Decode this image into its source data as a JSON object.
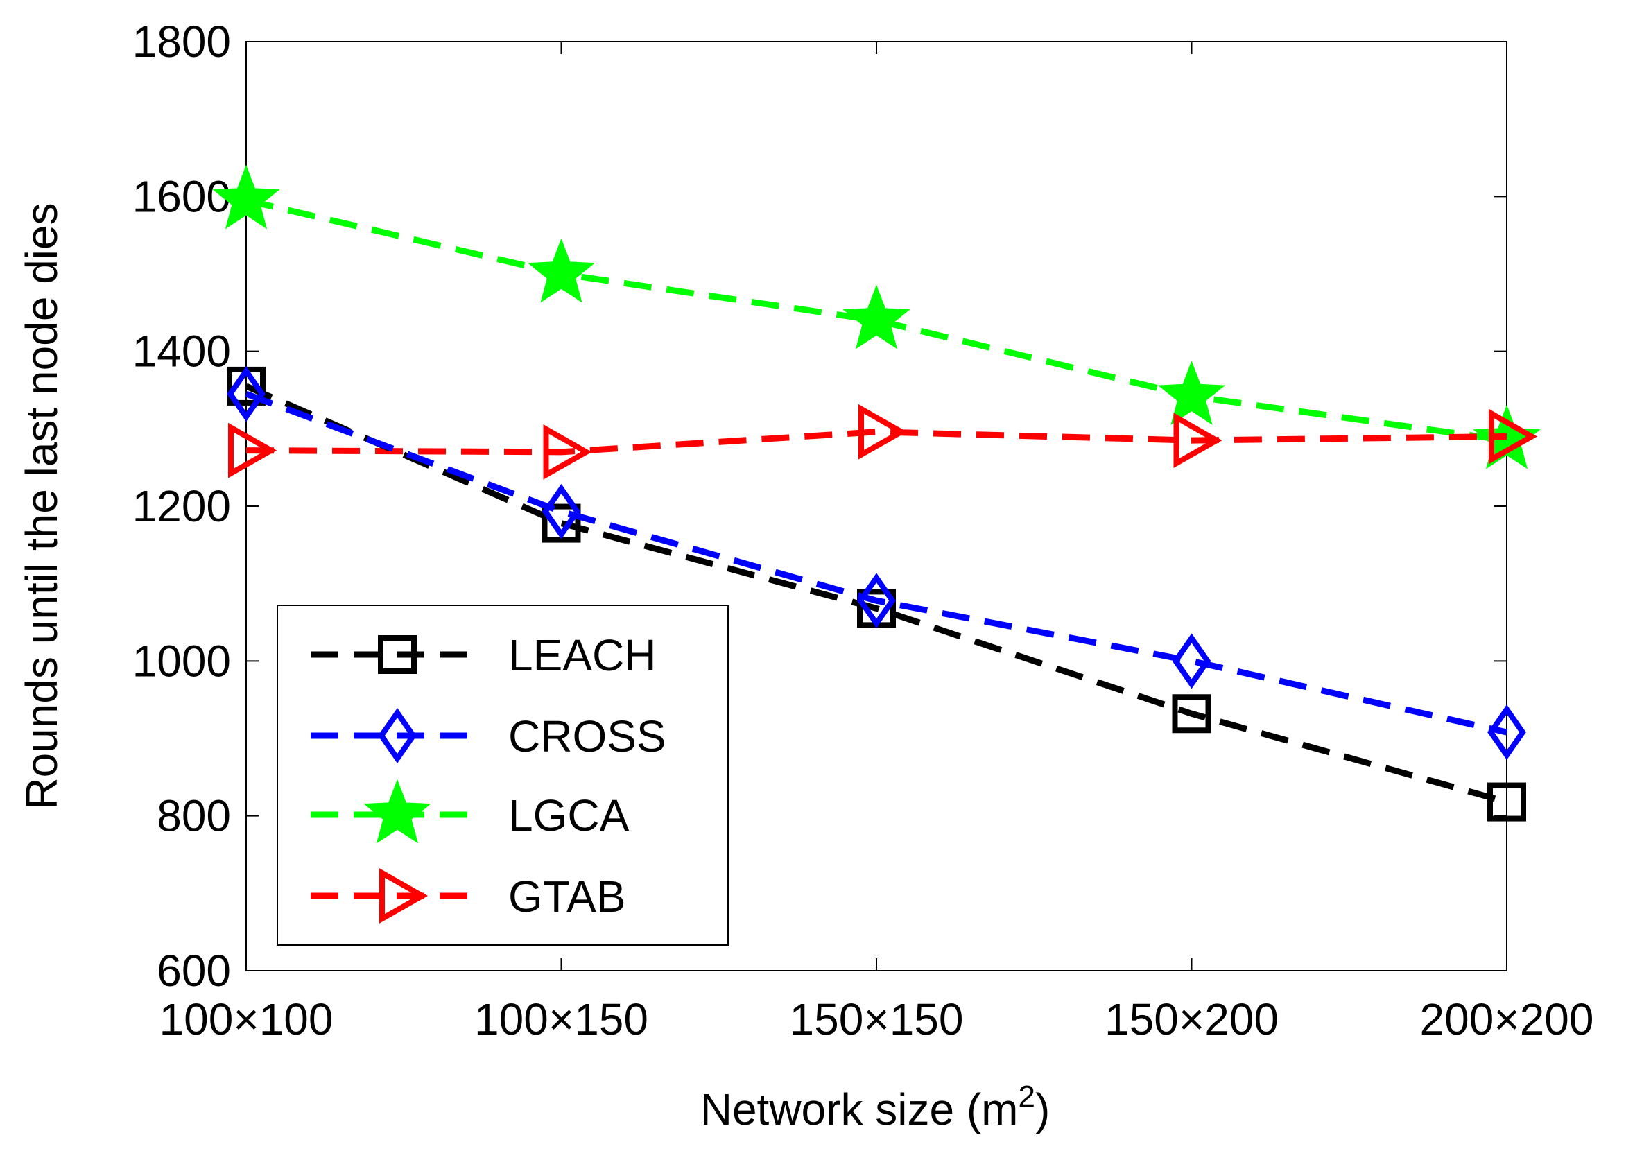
{
  "chart_data": {
    "type": "line",
    "title": "",
    "xlabel": "Network size (m",
    "xlabel_superscript": "2",
    "xlabel_suffix": ")",
    "ylabel": "Rounds until the last node dies",
    "categories": [
      "100×100",
      "100×150",
      "150×150",
      "150×200",
      "200×200"
    ],
    "ylim": [
      600,
      1800
    ],
    "yticks": [
      600,
      800,
      1000,
      1200,
      1400,
      1600,
      1800
    ],
    "ytick_labels": [
      "600",
      "800",
      "1000",
      "1200",
      "1400",
      "1600",
      "1800"
    ],
    "grid": false,
    "legend_position": "bottom-left",
    "series": [
      {
        "name": "LEACH",
        "color": "#000000",
        "marker": "square",
        "values": [
          1355,
          1178,
          1068,
          932,
          818
        ]
      },
      {
        "name": "CROSS",
        "color": "#0000ff",
        "marker": "diamond",
        "values": [
          1345,
          1193,
          1078,
          1000,
          908
        ]
      },
      {
        "name": "LGCA",
        "color": "#00ff00",
        "marker": "star",
        "values": [
          1595,
          1500,
          1440,
          1342,
          1285
        ]
      },
      {
        "name": "GTAB",
        "color": "#ff0000",
        "marker": "triangle-right",
        "values": [
          1272,
          1270,
          1296,
          1285,
          1290
        ]
      }
    ]
  }
}
